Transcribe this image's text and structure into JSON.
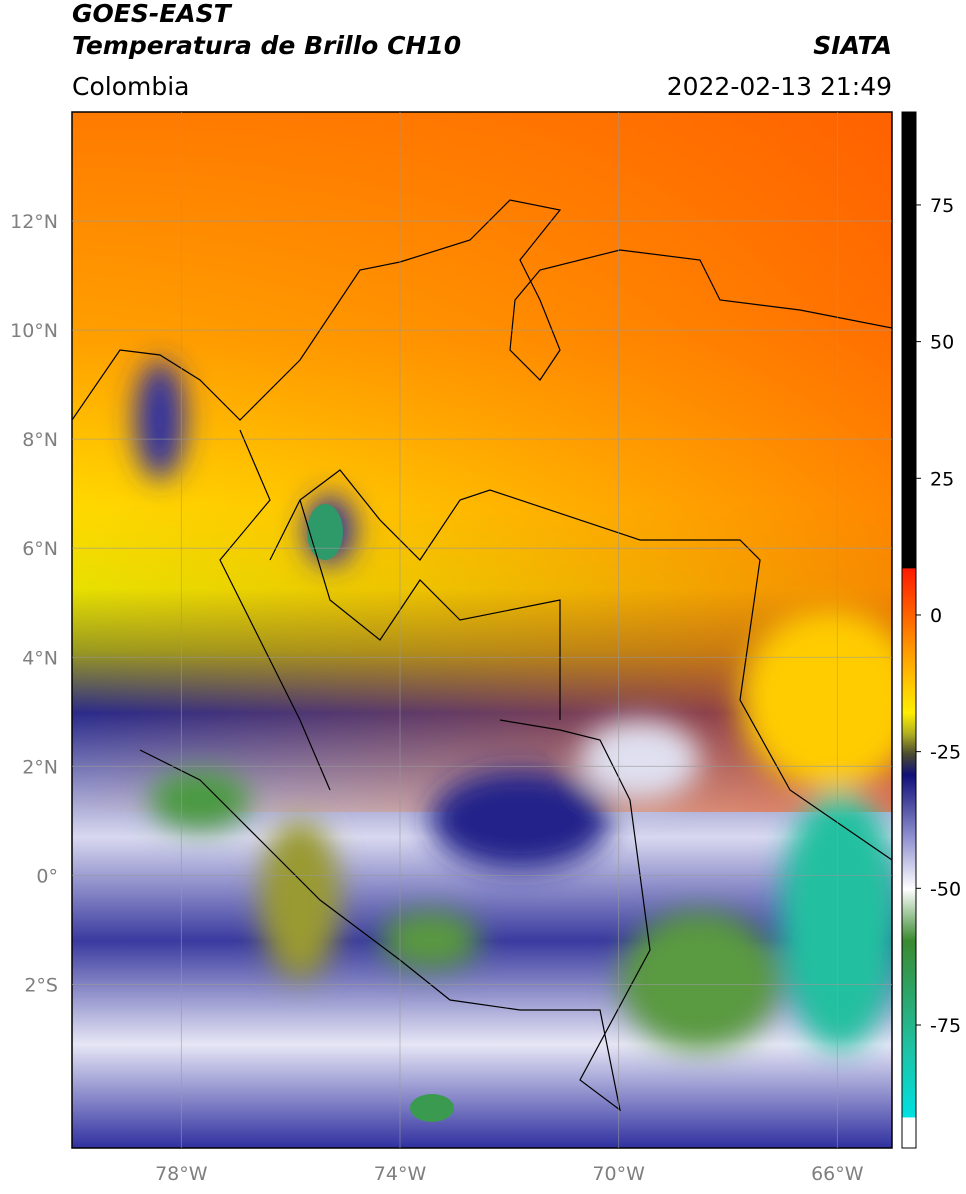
{
  "header": {
    "title": "GOES-EAST",
    "subtitle": "Temperatura de Brillo CH10",
    "region": "Colombia",
    "source": "SIATA",
    "datetime": "2022-02-13 21:49"
  },
  "map": {
    "xlim": [
      -80,
      -65
    ],
    "ylim": [
      -5,
      14
    ],
    "xticks": [
      {
        "value": -78,
        "label": "78°W"
      },
      {
        "value": -74,
        "label": "74°W"
      },
      {
        "value": -70,
        "label": "70°W"
      },
      {
        "value": -66,
        "label": "66°W"
      }
    ],
    "yticks": [
      {
        "value": -2,
        "label": "2°S"
      },
      {
        "value": 0,
        "label": "0°"
      },
      {
        "value": 2,
        "label": "2°N"
      },
      {
        "value": 4,
        "label": "4°N"
      },
      {
        "value": 6,
        "label": "6°N"
      },
      {
        "value": 8,
        "label": "8°N"
      },
      {
        "value": 10,
        "label": "10°N"
      },
      {
        "value": 12,
        "label": "12°N"
      }
    ],
    "grid": true
  },
  "colorbar": {
    "lim": [
      -97.5,
      92
    ],
    "ticks": [
      -75,
      -50,
      -25,
      0,
      25,
      50,
      75
    ]
  }
}
